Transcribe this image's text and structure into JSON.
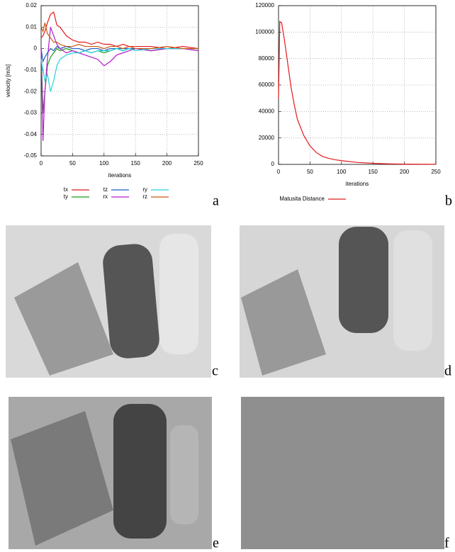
{
  "chart_data": [
    {
      "type": "line",
      "xlabel": "iterations",
      "ylabel": "velocity [m/s]",
      "x": [
        0,
        3,
        6,
        10,
        15,
        20,
        25,
        30,
        40,
        50,
        60,
        70,
        80,
        90,
        100,
        110,
        120,
        130,
        140,
        150,
        175,
        200,
        225,
        250
      ],
      "series": [
        {
          "name": "tx",
          "color": "#e41a1c",
          "values": [
            0.005,
            0.006,
            0.008,
            0.012,
            0.016,
            0.017,
            0.011,
            0.01,
            0.006,
            0.004,
            0.003,
            0.003,
            0.002,
            0.003,
            0.002,
            0.002,
            0.001,
            0.002,
            0.001,
            0.001,
            0.001,
            0.0,
            0.001,
            0.0
          ]
        },
        {
          "name": "ty",
          "color": "#1a9a1a",
          "values": [
            0.0,
            -0.03,
            -0.02,
            -0.008,
            -0.004,
            -0.002,
            0.0,
            -0.001,
            0.0,
            -0.001,
            -0.002,
            -0.001,
            -0.002,
            -0.001,
            -0.002,
            -0.001,
            0.0,
            -0.001,
            0.0,
            0.0,
            -0.001,
            0.0,
            0.0,
            0.0
          ]
        },
        {
          "name": "tz",
          "color": "#1f5fbf",
          "values": [
            0.0,
            -0.006,
            -0.004,
            -0.002,
            0.0,
            -0.001,
            0.001,
            0.0,
            0.001,
            0.0,
            0.0,
            -0.001,
            0.0,
            0.0,
            -0.001,
            0.0,
            0.0,
            0.0,
            0.0,
            0.0,
            0.0,
            0.0,
            0.0,
            0.0
          ]
        },
        {
          "name": "rx",
          "color": "#b31ac9",
          "values": [
            0.0,
            -0.043,
            -0.02,
            -0.005,
            0.01,
            0.006,
            0.002,
            0.0,
            -0.002,
            -0.001,
            -0.002,
            -0.003,
            -0.004,
            -0.005,
            -0.008,
            -0.006,
            -0.003,
            -0.002,
            -0.001,
            0.0,
            -0.001,
            0.0,
            0.0,
            -0.001
          ]
        },
        {
          "name": "ry",
          "color": "#22d3e0",
          "values": [
            -0.005,
            -0.01,
            -0.015,
            -0.012,
            -0.02,
            -0.015,
            -0.008,
            -0.005,
            -0.003,
            -0.002,
            -0.002,
            -0.001,
            -0.002,
            -0.001,
            -0.001,
            -0.001,
            0.0,
            -0.001,
            0.0,
            -0.001,
            0.0,
            0.0,
            0.0,
            0.0
          ]
        },
        {
          "name": "rz",
          "color": "#c65a11",
          "values": [
            0.01,
            0.008,
            0.012,
            0.007,
            0.005,
            0.003,
            0.003,
            0.002,
            0.001,
            0.001,
            0.002,
            0.001,
            0.001,
            0.001,
            0.0,
            0.001,
            0.001,
            0.0,
            0.001,
            0.0,
            0.0,
            0.001,
            0.0,
            0.0
          ]
        }
      ],
      "xlim": [
        0,
        250
      ],
      "xticks": [
        0,
        50,
        100,
        150,
        200,
        250
      ],
      "ylim": [
        -0.05,
        0.02
      ],
      "yticks": [
        -0.05,
        -0.04,
        -0.03,
        -0.02,
        -0.01,
        0,
        0.01,
        0.02
      ],
      "grid": true,
      "legend": "bottom"
    },
    {
      "type": "line",
      "xlabel": "iterations",
      "x": [
        0,
        2,
        5,
        10,
        15,
        20,
        25,
        30,
        40,
        50,
        60,
        70,
        80,
        90,
        100,
        125,
        150,
        175,
        200,
        250
      ],
      "series": [
        {
          "name": "Matusita Distance",
          "color": "#e41a1c",
          "values": [
            50000,
            108000,
            107000,
            92000,
            75000,
            58000,
            45000,
            34000,
            22000,
            14000,
            9000,
            6000,
            4500,
            3500,
            2800,
            1500,
            800,
            400,
            200,
            100
          ]
        }
      ],
      "xlim": [
        0,
        250
      ],
      "xticks": [
        0,
        50,
        100,
        150,
        200,
        250
      ],
      "ylim": [
        0,
        120000
      ],
      "yticks": [
        0,
        20000,
        40000,
        60000,
        80000,
        100000,
        120000
      ],
      "grid": true,
      "legend": "bottom"
    }
  ],
  "panel_labels": [
    "a",
    "b",
    "c",
    "d",
    "e",
    "f"
  ]
}
